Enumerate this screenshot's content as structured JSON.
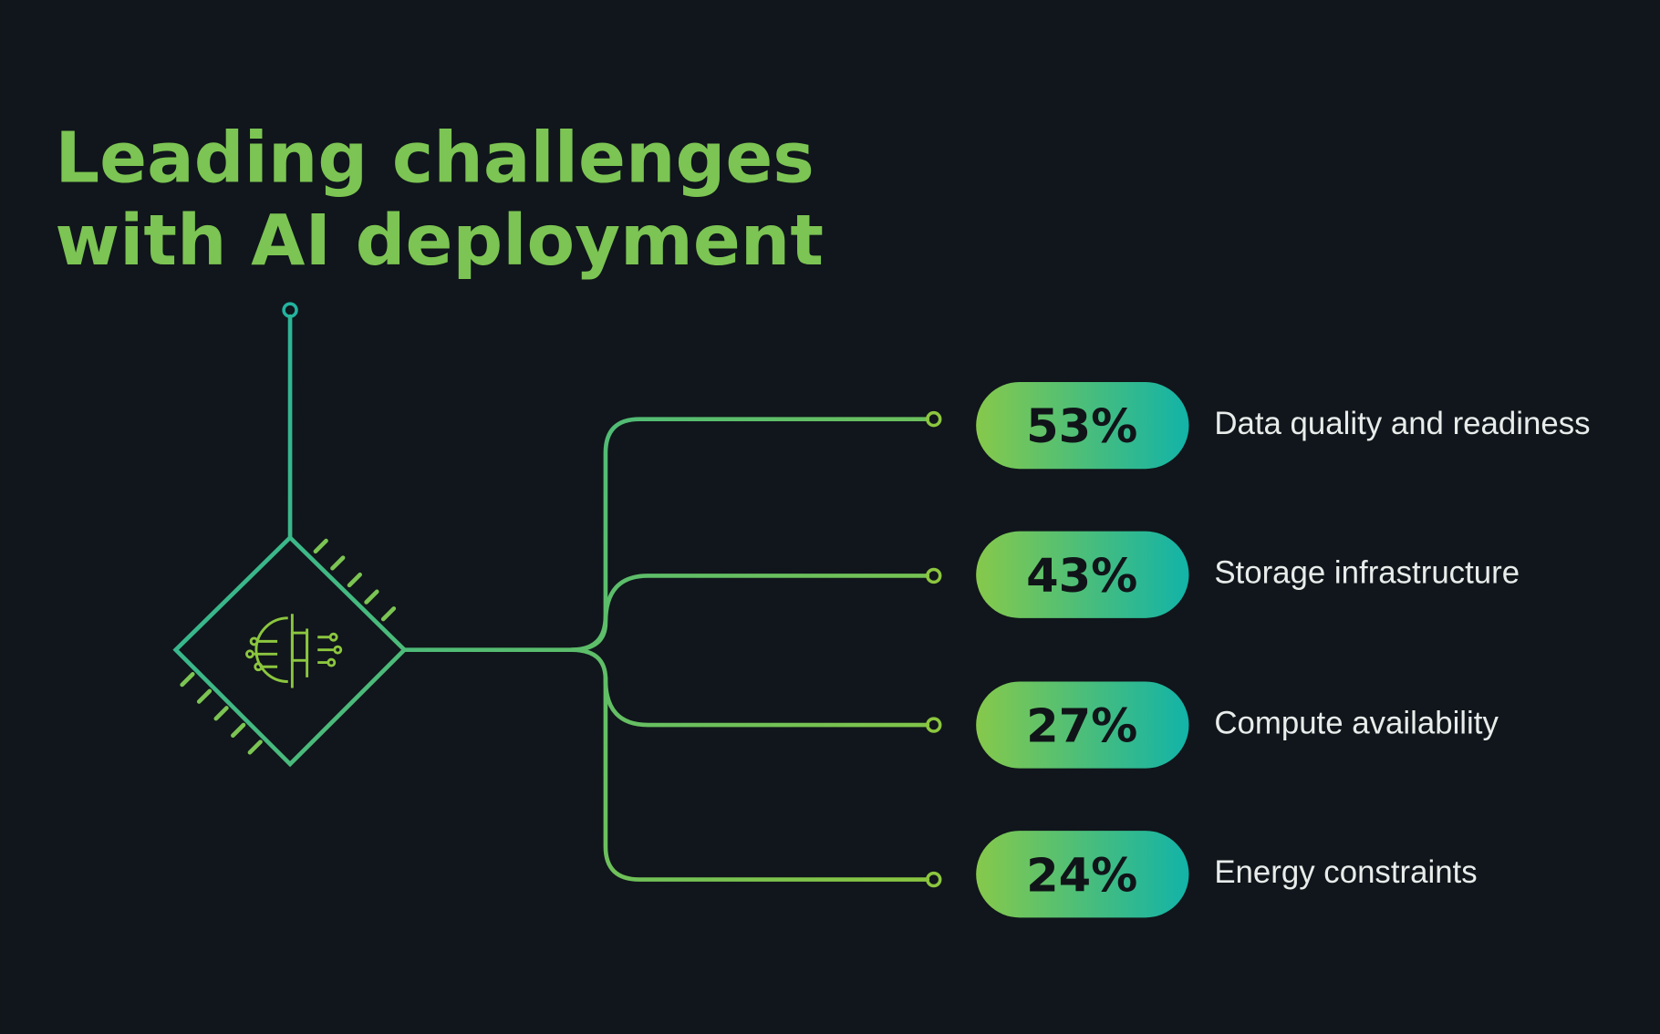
{
  "title": [
    "Leading challenges",
    "with AI deployment"
  ],
  "items": [
    {
      "percent": "53%",
      "label": "Data quality and readiness"
    },
    {
      "percent": "43%",
      "label": "Storage infrastructure"
    },
    {
      "percent": "27%",
      "label": "Compute availability"
    },
    {
      "percent": "24%",
      "label": "Energy constraints"
    }
  ]
}
